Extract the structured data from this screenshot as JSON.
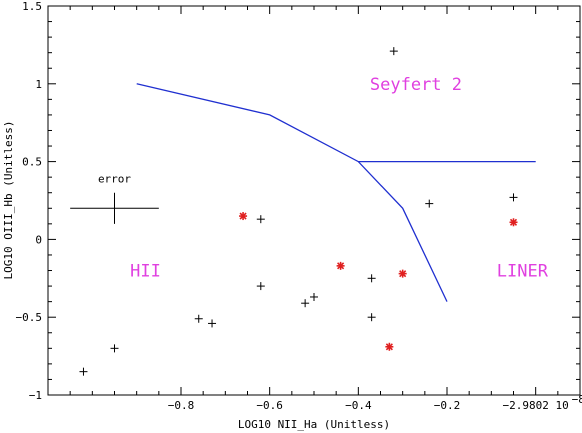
{
  "chart_data": {
    "type": "scatter",
    "xlabel": "LOG10 NII_Ha (Unitless)",
    "ylabel": "LOG10 OIII_Hb (Unitless)",
    "xlim": [
      -1.1,
      0.1
    ],
    "ylim": [
      -1.0,
      1.5
    ],
    "x_ticks": [
      -0.8,
      -0.6,
      -0.4,
      -0.2
    ],
    "x_tick_labels": [
      "−0.8",
      "−0.6",
      "−0.4",
      "−0.2"
    ],
    "x_end_label": "−2.9802 10",
    "x_end_label_exp": "−8",
    "y_ticks": [
      -1.0,
      -0.5,
      0.0,
      0.5,
      1.0,
      1.5
    ],
    "y_tick_labels": [
      "−1",
      "−0.5",
      "0",
      "0.5",
      "1",
      "1.5"
    ],
    "series": [
      {
        "marker": "plus",
        "color": "#000000",
        "points": [
          [
            -1.02,
            -0.85
          ],
          [
            -0.95,
            -0.7
          ],
          [
            -0.76,
            -0.51
          ],
          [
            -0.73,
            -0.54
          ],
          [
            -0.62,
            0.13
          ],
          [
            -0.62,
            -0.3
          ],
          [
            -0.52,
            -0.41
          ],
          [
            -0.5,
            -0.37
          ],
          [
            -0.37,
            -0.25
          ],
          [
            -0.37,
            -0.5
          ],
          [
            -0.32,
            1.21
          ],
          [
            -0.24,
            0.23
          ],
          [
            -0.05,
            0.27
          ]
        ]
      },
      {
        "marker": "asterisk",
        "color": "#e02020",
        "points": [
          [
            -0.66,
            0.15
          ],
          [
            -0.44,
            -0.17
          ],
          [
            -0.33,
            -0.69
          ],
          [
            -0.3,
            -0.22
          ],
          [
            -0.05,
            0.11
          ]
        ]
      }
    ],
    "lines": [
      {
        "color": "#2030d0",
        "points": [
          [
            -0.9,
            1.0
          ],
          [
            -0.6,
            0.8
          ],
          [
            -0.4,
            0.5
          ],
          [
            -0.3,
            0.2
          ],
          [
            -0.2,
            -0.4
          ]
        ]
      },
      {
        "color": "#2030d0",
        "points": [
          [
            -0.4,
            0.5
          ],
          [
            0.0,
            0.5
          ]
        ]
      }
    ],
    "annotations": [
      {
        "text": "Seyfert 2",
        "x": -0.27,
        "y": 1.0,
        "color": "#e040e0"
      },
      {
        "text": "HII",
        "x": -0.88,
        "y": -0.2,
        "color": "#e040e0"
      },
      {
        "text": "LINER",
        "x": -0.03,
        "y": -0.2,
        "color": "#e040e0"
      }
    ],
    "error_bar": {
      "label": "error",
      "center": [
        -0.95,
        0.2
      ],
      "x_half_width": 0.1,
      "y_half_height": 0.1
    }
  }
}
